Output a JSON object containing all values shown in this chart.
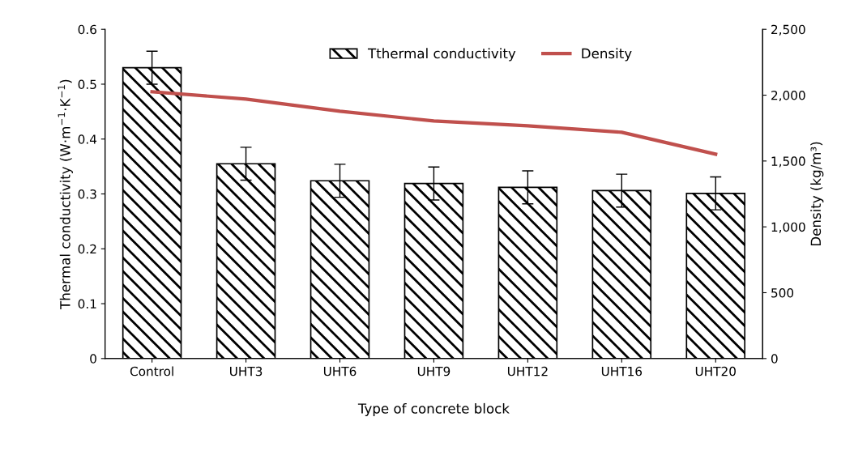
{
  "chart_data": {
    "type": "bar",
    "xlabel": "Type of concrete block",
    "ylabel": "Thermal conductivity (W·m$^{−1}$·K$^{−1}$)",
    "y2label": "Density (kg/m³)",
    "categories": [
      "Control",
      "UHT3",
      "UHT6",
      "UHT9",
      "UHT12",
      "UHT16",
      "UHT20"
    ],
    "series": [
      {
        "name": "Tthermal conductivity",
        "type": "bar",
        "color": "#000000",
        "values": [
          0.53,
          0.355,
          0.324,
          0.319,
          0.312,
          0.306,
          0.301
        ],
        "errors": [
          0.03,
          0.03,
          0.03,
          0.03,
          0.03,
          0.03,
          0.03
        ]
      },
      {
        "name": "Density",
        "type": "line",
        "axis": "y2",
        "color": "#c0504d",
        "values": [
          2026,
          1970,
          1878,
          1804,
          1767,
          1718,
          1552
        ]
      }
    ],
    "ylim": [
      0,
      0.6
    ],
    "yticks": [
      0,
      0.1,
      0.2,
      0.3,
      0.4,
      0.5,
      0.6
    ],
    "y2lim": [
      0,
      2500
    ],
    "y2ticks": [
      0,
      500,
      {
        "value": 1000,
        "label": "1,000"
      },
      {
        "value": 1500,
        "label": "1,500"
      },
      {
        "value": 2000,
        "label": "2,000"
      },
      {
        "value": 2500,
        "label": "2,500"
      }
    ],
    "legend": "top right",
    "grid": false,
    "marker": "none",
    "line_style": "solid"
  }
}
